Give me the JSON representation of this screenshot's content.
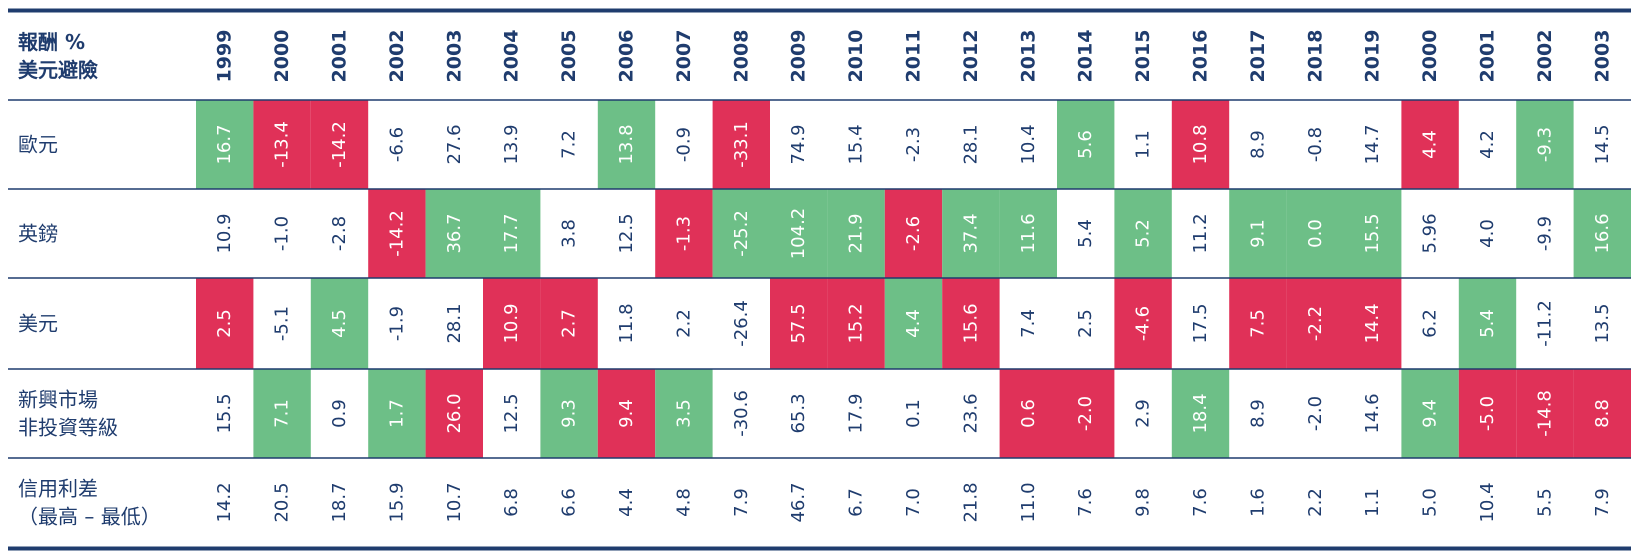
{
  "header": {
    "label": [
      "報酬 %",
      "美元避險"
    ],
    "columns": [
      "1999",
      "2000",
      "2001",
      "2002",
      "2003",
      "2004",
      "2005",
      "2006",
      "2007",
      "2008",
      "2009",
      "2010",
      "2011",
      "2012",
      "2013",
      "2014",
      "2015",
      "2016",
      "2017",
      "2018",
      "2019",
      "2000",
      "2001",
      "2002",
      "2003"
    ]
  },
  "colors": {
    "g": "#6dbf87",
    "r": "#e03158"
  },
  "rows": [
    {
      "label": [
        "歐元"
      ],
      "cells": [
        "16.7",
        "-13.4",
        "-14.2",
        "-6.6",
        "27.6",
        "13.9",
        "7.2",
        "13.8",
        "-0.9",
        "-33.1",
        "74.9",
        "15.4",
        "-2.3",
        "28.1",
        "10.4",
        "5.6",
        "1.1",
        "10.8",
        "8.9",
        "-0.8",
        "14.7",
        "4.4",
        "4.2",
        "-9.3",
        "14.5"
      ],
      "highlight": [
        "g",
        "r",
        "r",
        null,
        null,
        null,
        null,
        "g",
        null,
        "r",
        null,
        null,
        null,
        null,
        null,
        "g",
        null,
        "r",
        null,
        null,
        null,
        "r",
        null,
        "g",
        null
      ]
    },
    {
      "label": [
        "英鎊"
      ],
      "cells": [
        "10.9",
        "-1.0",
        "-2.8",
        "-14.2",
        "36.7",
        "17.7",
        "3.8",
        "12.5",
        "-1.3",
        "-25.2",
        "104.2",
        "21.9",
        "-2.6",
        "37.4",
        "11.6",
        "5.4",
        "5.2",
        "11.2",
        "9.1",
        "0.0",
        "15.5",
        "5.96",
        "4.0",
        "-9.9",
        "16.6"
      ],
      "highlight": [
        null,
        null,
        null,
        "r",
        "g",
        "g",
        null,
        null,
        "r",
        "g",
        "g",
        "g",
        "r",
        "g",
        "g",
        null,
        "g",
        null,
        "g",
        "g",
        "g",
        null,
        null,
        null,
        "g"
      ]
    },
    {
      "label": [
        "美元"
      ],
      "cells": [
        "2.5",
        "-5.1",
        "4.5",
        "-1.9",
        "28.1",
        "10.9",
        "2.7",
        "11.8",
        "2.2",
        "-26.4",
        "57.5",
        "15.2",
        "4.4",
        "15.6",
        "7.4",
        "2.5",
        "-4.6",
        "17.5",
        "7.5",
        "-2.2",
        "14.4",
        "6.2",
        "5.4",
        "-11.2",
        "13.5"
      ],
      "highlight": [
        "r",
        null,
        "g",
        null,
        null,
        "r",
        "r",
        null,
        null,
        null,
        "r",
        "r",
        "g",
        "r",
        null,
        null,
        "r",
        null,
        "r",
        "r",
        "r",
        null,
        "g",
        null,
        null
      ]
    },
    {
      "label": [
        "新興市場",
        "非投資等級"
      ],
      "cells": [
        "15.5",
        "7.1",
        "0.9",
        "1.7",
        "26.0",
        "12.5",
        "9.3",
        "9.4",
        "3.5",
        "-30.6",
        "65.3",
        "17.9",
        "0.1",
        "23.6",
        "0.6",
        "-2.0",
        "2.9",
        "18.4",
        "8.9",
        "-2.0",
        "14.6",
        "9.4",
        "-5.0",
        "-14.8",
        "8.8"
      ],
      "highlight": [
        null,
        "g",
        null,
        "g",
        "r",
        null,
        "g",
        "r",
        "g",
        null,
        null,
        null,
        null,
        null,
        "r",
        "r",
        null,
        "g",
        null,
        null,
        null,
        "g",
        "r",
        "r",
        "r"
      ]
    },
    {
      "label": [
        "信用利差",
        "（最高 – 最低）"
      ],
      "cells": [
        "14.2",
        "20.5",
        "18.7",
        "15.9",
        "10.7",
        "6.8",
        "6.6",
        "4.4",
        "4.8",
        "7.9",
        "46.7",
        "6.7",
        "7.0",
        "21.8",
        "11.0",
        "7.6",
        "9.8",
        "7.6",
        "1.6",
        "2.2",
        "1.1",
        "5.0",
        "10.4",
        "5.5",
        "7.9"
      ],
      "highlight": [
        null,
        null,
        null,
        null,
        null,
        null,
        null,
        null,
        null,
        null,
        null,
        null,
        null,
        null,
        null,
        null,
        null,
        null,
        null,
        null,
        null,
        null,
        null,
        null,
        null
      ]
    }
  ]
}
